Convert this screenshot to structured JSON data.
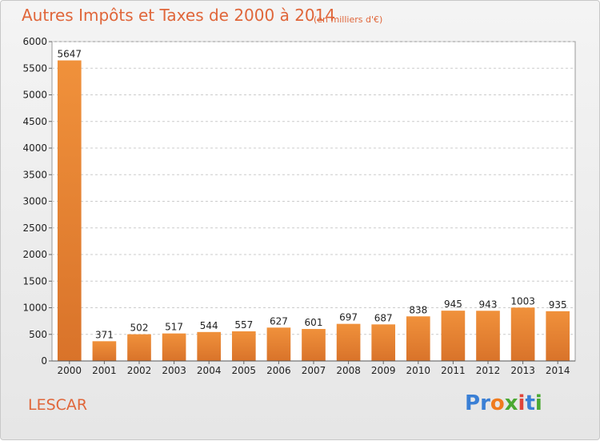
{
  "title": "Autres Impôts et Taxes de 2000 à 2014",
  "unit_note": "(en milliers d'€)",
  "city": "LESCAR",
  "logo": {
    "letters": [
      "P",
      "r",
      "o",
      "x",
      "i",
      "t",
      "i"
    ],
    "colors": [
      "#3a7fd5",
      "#3a7fd5",
      "#f07b1e",
      "#4aa832",
      "#e0453a",
      "#3a7fd5",
      "#4aa832"
    ]
  },
  "colors": {
    "bar": "#f0913b",
    "bar_dark": "#d9732a",
    "title": "#e0663a"
  },
  "chart_data": {
    "type": "bar",
    "title": "Autres Impôts et Taxes de 2000 à 2014",
    "categories": [
      "2000",
      "2001",
      "2002",
      "2003",
      "2004",
      "2005",
      "2006",
      "2007",
      "2008",
      "2009",
      "2010",
      "2011",
      "2012",
      "2013",
      "2014"
    ],
    "values": [
      5647,
      371,
      502,
      517,
      544,
      557,
      627,
      601,
      697,
      687,
      838,
      945,
      943,
      1003,
      935
    ],
    "ylim": [
      0,
      6000
    ],
    "yticks": [
      0,
      500,
      1000,
      1500,
      2000,
      2500,
      3000,
      3500,
      4000,
      4500,
      5000,
      5500,
      6000
    ],
    "grid": true
  }
}
